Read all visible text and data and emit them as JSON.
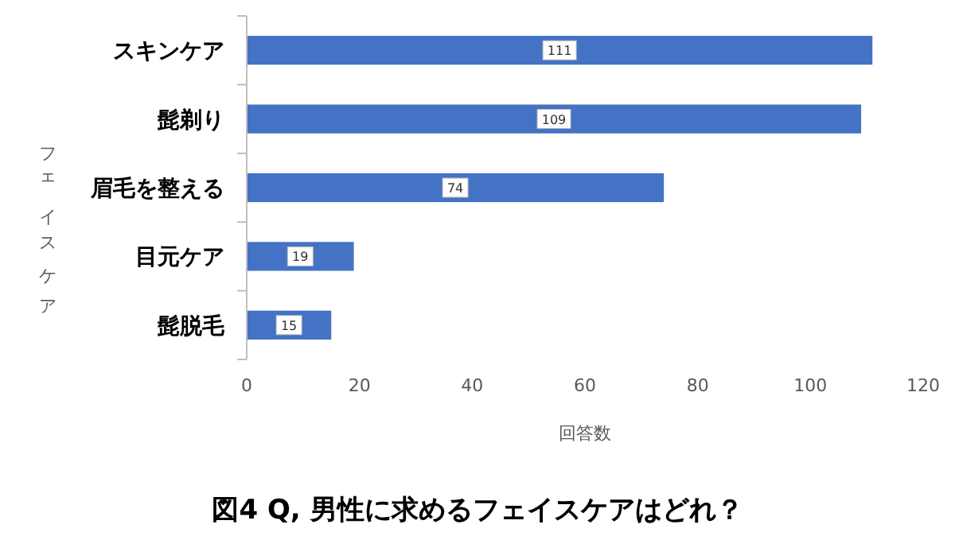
{
  "chart_data": {
    "type": "bar",
    "orientation": "horizontal",
    "title": "図4 Q, 男性に求めるフェイスケアはどれ？",
    "xlabel": "回答数",
    "ylabel": "フェイスケア",
    "categories": [
      "スキンケア",
      "髭剃り",
      "眉毛を整える",
      "目元ケア",
      "髭脱毛"
    ],
    "values": [
      111,
      109,
      74,
      19,
      15
    ],
    "color": "#4472c4",
    "xlim": [
      0,
      120
    ],
    "xticks": [
      0,
      20,
      40,
      60,
      80,
      100,
      120
    ],
    "grid": false,
    "data_labels": true
  }
}
